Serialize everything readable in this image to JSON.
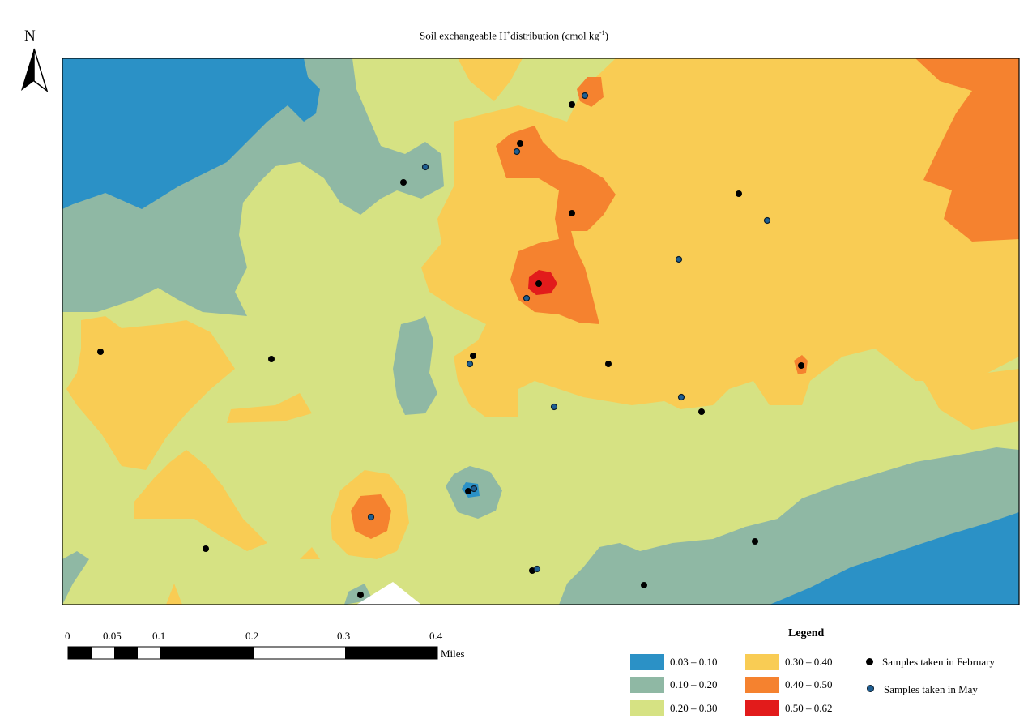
{
  "map": {
    "title": "Soil exchangeable H",
    "title_sup": "+",
    "title_rest": "distribution (cmol kg",
    "title_unit_sup": "-1",
    "title_close": ")",
    "north_label": "N",
    "colors": {
      "c1": "#2b91c6",
      "c2": "#8fb8a4",
      "c3": "#d6e283",
      "c4": "#f9cc54",
      "c5": "#f5822f",
      "c6": "#e21b1b",
      "feb_dot": "#000000",
      "may_dot": "#1f5f93"
    }
  },
  "scale_bar": {
    "labels": [
      "0",
      "0.05",
      "0.1",
      "0.2",
      "0.3",
      "0.4"
    ],
    "unit": "Miles"
  },
  "legend": {
    "title": "Legend",
    "classes": [
      {
        "label": "0.03 – 0.10",
        "color": "#2b91c6"
      },
      {
        "label": "0.10 – 0.20",
        "color": "#8fb8a4"
      },
      {
        "label": "0.20 – 0.30",
        "color": "#d6e283"
      },
      {
        "label": "0.30 – 0.40",
        "color": "#f9cc54"
      },
      {
        "label": "0.40 – 0.50",
        "color": "#f5822f"
      },
      {
        "label": "0.50 – 0.62",
        "color": "#e21b1b"
      }
    ],
    "samples": [
      {
        "label": "Samples taken in February"
      },
      {
        "label": "Samples taken in May"
      }
    ]
  }
}
